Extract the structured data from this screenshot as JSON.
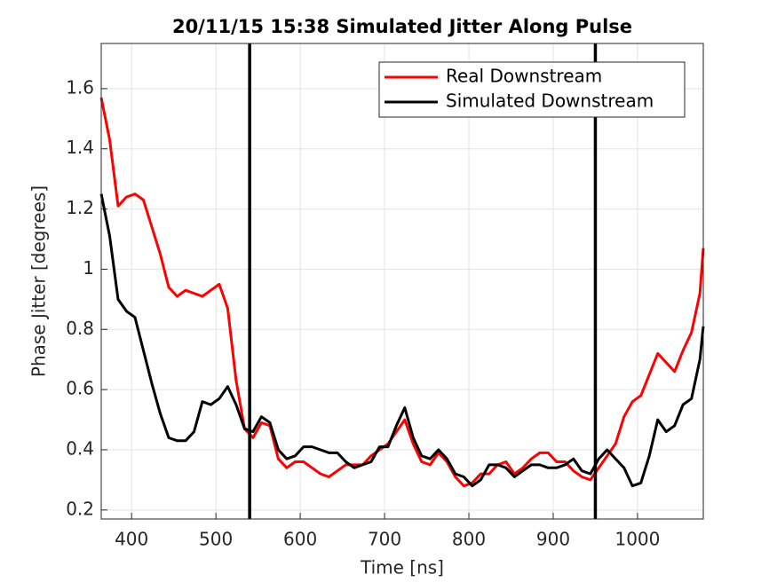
{
  "chart_data": {
    "type": "line",
    "title": "20/11/15 15:38 Simulated Jitter Along Pulse",
    "xlabel": "Time [ns]",
    "ylabel": "Phase Jitter [degrees]",
    "x": [
      364,
      374,
      384,
      394,
      404,
      414,
      424,
      434,
      444,
      454,
      464,
      474,
      484,
      494,
      504,
      514,
      524,
      534,
      544,
      554,
      564,
      574,
      584,
      594,
      604,
      614,
      624,
      634,
      644,
      654,
      664,
      674,
      684,
      694,
      704,
      714,
      724,
      734,
      744,
      754,
      764,
      774,
      784,
      794,
      804,
      814,
      824,
      834,
      844,
      854,
      864,
      874,
      884,
      894,
      904,
      914,
      924,
      934,
      944,
      954,
      964,
      974,
      984,
      994,
      1004,
      1014,
      1024,
      1034,
      1044,
      1054,
      1064,
      1074,
      1078
    ],
    "series": [
      {
        "name": "Real Downstream",
        "color": "#ff0000",
        "values": [
          1.57,
          1.43,
          1.21,
          1.24,
          1.25,
          1.23,
          1.14,
          1.05,
          0.94,
          0.91,
          0.93,
          0.92,
          0.91,
          0.93,
          0.95,
          0.87,
          0.63,
          0.47,
          0.44,
          0.49,
          0.48,
          0.37,
          0.34,
          0.36,
          0.36,
          0.34,
          0.32,
          0.31,
          0.33,
          0.35,
          0.35,
          0.35,
          0.38,
          0.4,
          0.42,
          0.46,
          0.5,
          0.42,
          0.36,
          0.35,
          0.39,
          0.36,
          0.31,
          0.28,
          0.29,
          0.32,
          0.32,
          0.35,
          0.36,
          0.32,
          0.34,
          0.37,
          0.39,
          0.39,
          0.36,
          0.36,
          0.33,
          0.31,
          0.3,
          0.34,
          0.38,
          0.42,
          0.51,
          0.56,
          0.58,
          0.65,
          0.72,
          0.69,
          0.66,
          0.73,
          0.79,
          0.92,
          1.07
        ]
      },
      {
        "name": "Simulated Downstream",
        "color": "#000000",
        "values": [
          1.25,
          1.11,
          0.9,
          0.86,
          0.84,
          0.73,
          0.62,
          0.52,
          0.44,
          0.43,
          0.43,
          0.46,
          0.56,
          0.55,
          0.57,
          0.61,
          0.55,
          0.47,
          0.46,
          0.51,
          0.49,
          0.4,
          0.37,
          0.38,
          0.41,
          0.41,
          0.4,
          0.39,
          0.39,
          0.36,
          0.34,
          0.35,
          0.36,
          0.41,
          0.41,
          0.48,
          0.54,
          0.44,
          0.38,
          0.37,
          0.4,
          0.37,
          0.32,
          0.31,
          0.28,
          0.3,
          0.35,
          0.35,
          0.34,
          0.31,
          0.33,
          0.35,
          0.35,
          0.34,
          0.34,
          0.35,
          0.37,
          0.33,
          0.32,
          0.37,
          0.4,
          0.37,
          0.34,
          0.28,
          0.29,
          0.38,
          0.5,
          0.46,
          0.48,
          0.55,
          0.57,
          0.7,
          0.81
        ]
      }
    ],
    "vlines": [
      540,
      950
    ],
    "xlim": [
      364,
      1078
    ],
    "ylim": [
      0.17,
      1.75
    ],
    "xticks": [
      400,
      500,
      600,
      700,
      800,
      900,
      1000
    ],
    "yticks": [
      0.2,
      0.4,
      0.6,
      0.8,
      1,
      1.2,
      1.4,
      1.6
    ],
    "grid": true,
    "legend": "upper-right"
  }
}
